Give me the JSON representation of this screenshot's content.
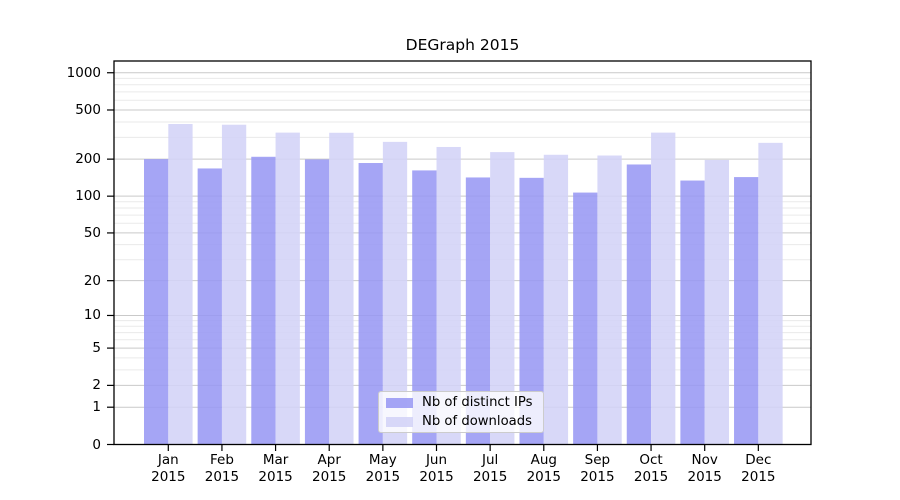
{
  "chart_data": {
    "type": "bar",
    "title": "DEGraph 2015",
    "categories": [
      "Jan",
      "Feb",
      "Mar",
      "Apr",
      "May",
      "Jun",
      "Jul",
      "Aug",
      "Sep",
      "Oct",
      "Nov",
      "Dec"
    ],
    "category_year": "2015",
    "series": [
      {
        "name": "Nb of distinct IPs",
        "color": "#9898f3",
        "values": [
          200,
          168,
          209,
          199,
          186,
          162,
          142,
          141,
          107,
          181,
          134,
          143
        ]
      },
      {
        "name": "Nb of downloads",
        "color": "#d2d2f7",
        "values": [
          385,
          380,
          328,
          327,
          276,
          251,
          228,
          217,
          214,
          328,
          197,
          271
        ]
      }
    ],
    "yscale": "log1p",
    "ylim": [
      0,
      1000
    ],
    "yticks": [
      1000,
      500,
      200,
      100,
      50,
      20,
      10,
      5,
      2,
      1,
      0
    ],
    "yticks_minor": [
      3,
      4,
      6,
      7,
      8,
      9,
      30,
      40,
      60,
      70,
      80,
      90,
      300,
      400,
      600,
      700,
      800,
      900
    ],
    "grid": "horizontal",
    "legend_position": "lower-center",
    "bar_opacity": 0.87
  }
}
